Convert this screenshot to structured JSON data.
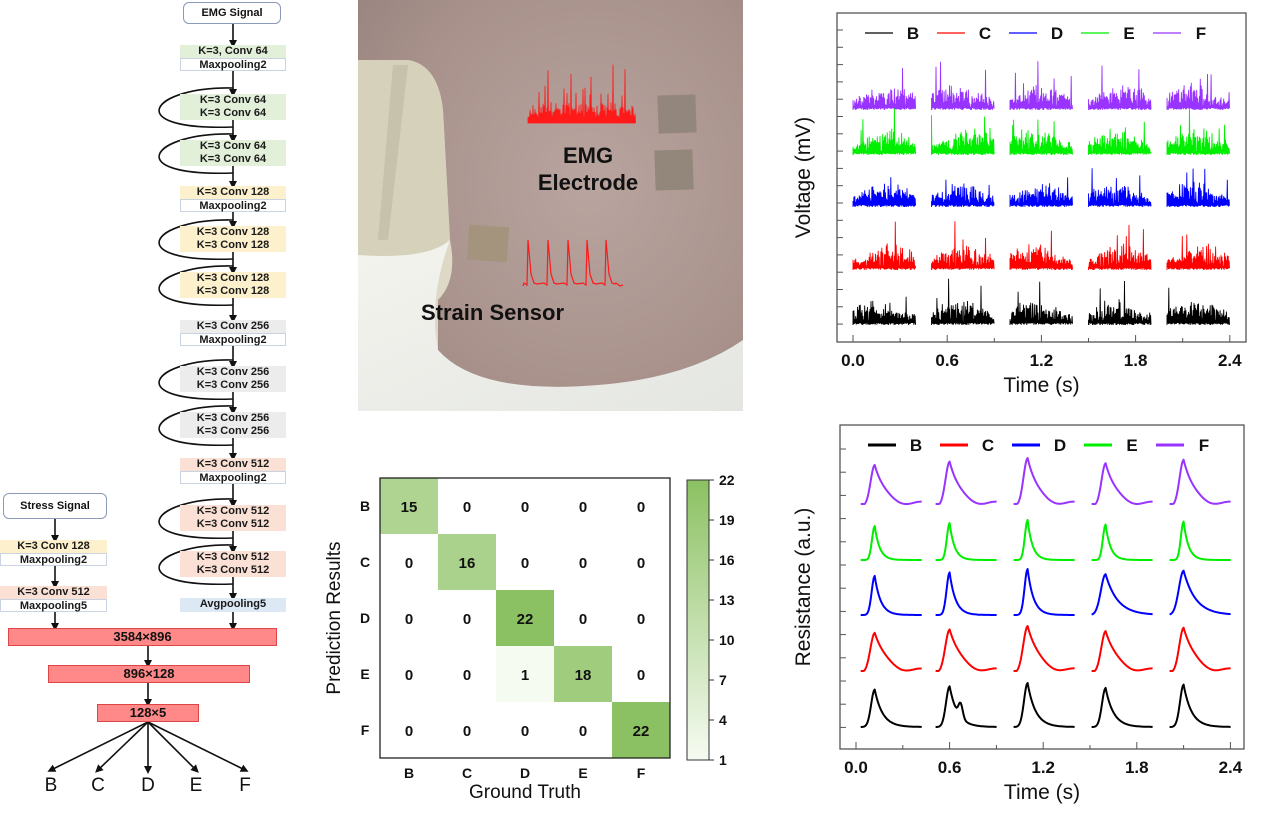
{
  "network": {
    "emg_input": "EMG Signal",
    "stress_input": "Stress Signal",
    "emg_branch": [
      {
        "type": "block",
        "stage": "64",
        "rows": [
          "K=3, Conv 64",
          "Maxpooling2"
        ]
      },
      {
        "type": "res",
        "stage": "64",
        "rows": [
          "K=3 Conv 64",
          "K=3 Conv 64"
        ]
      },
      {
        "type": "res",
        "stage": "64",
        "rows": [
          "K=3 Conv 64",
          "K=3 Conv 64"
        ]
      },
      {
        "type": "block",
        "stage": "128",
        "rows": [
          "K=3 Conv 128",
          "Maxpooling2"
        ]
      },
      {
        "type": "res",
        "stage": "128",
        "rows": [
          "K=3 Conv 128",
          "K=3 Conv 128"
        ]
      },
      {
        "type": "res",
        "stage": "128",
        "rows": [
          "K=3 Conv 128",
          "K=3 Conv 128"
        ]
      },
      {
        "type": "block",
        "stage": "256",
        "rows": [
          "K=3 Conv 256",
          "Maxpooling2"
        ]
      },
      {
        "type": "res",
        "stage": "256",
        "rows": [
          "K=3 Conv 256",
          "K=3 Conv 256"
        ]
      },
      {
        "type": "res",
        "stage": "256",
        "rows": [
          "K=3 Conv 256",
          "K=3 Conv 256"
        ]
      },
      {
        "type": "block",
        "stage": "512",
        "rows": [
          "K=3 Conv 512",
          "Maxpooling2"
        ]
      },
      {
        "type": "res",
        "stage": "512",
        "rows": [
          "K=3 Conv 512",
          "K=3 Conv 512"
        ]
      },
      {
        "type": "res",
        "stage": "512",
        "rows": [
          "K=3 Conv 512",
          "K=3 Conv 512"
        ]
      },
      {
        "type": "avg",
        "stage": "avg",
        "rows": [
          "Avgpooling5"
        ]
      }
    ],
    "stress_branch": [
      {
        "stage": "128",
        "rows": [
          "K=3 Conv 128",
          "Maxpooling2"
        ]
      },
      {
        "stage": "512",
        "rows": [
          "K=3 Conv 512",
          "Maxpooling5"
        ]
      }
    ],
    "fc_layers": [
      "3584×896",
      "896×128",
      "128×5"
    ],
    "outputs": [
      "B",
      "C",
      "D",
      "E",
      "F"
    ],
    "stage_colors": {
      "64": "#e2efd9",
      "128": "#fdf0cc",
      "256": "#ececec",
      "512": "#fbe1d5",
      "avg": "#dce8f4"
    }
  },
  "photo": {
    "emg_label_line1": "EMG",
    "emg_label_line2": "Electrode",
    "strain_label": "Strain Sensor",
    "signal_color": "#ff1a1a"
  },
  "chart_data": [
    {
      "type": "heatmap",
      "title": "",
      "xlabel": "Ground Truth",
      "ylabel": "Prediction Results",
      "x_categories": [
        "B",
        "C",
        "D",
        "E",
        "F"
      ],
      "y_categories": [
        "B",
        "C",
        "D",
        "E",
        "F"
      ],
      "matrix": [
        [
          15,
          0,
          0,
          0,
          0
        ],
        [
          0,
          16,
          0,
          0,
          0
        ],
        [
          0,
          0,
          22,
          0,
          0
        ],
        [
          0,
          0,
          1,
          18,
          0
        ],
        [
          0,
          0,
          0,
          0,
          22
        ]
      ],
      "colorbar": {
        "min": 1,
        "max": 22,
        "ticks": [
          22,
          19,
          16,
          13,
          10,
          7,
          4,
          1
        ],
        "low_color": "#f6fbf1",
        "high_color": "#8cc163"
      }
    },
    {
      "type": "line",
      "title": "",
      "xlabel": "Time (s)",
      "ylabel": "Voltage (mV)",
      "xlim": [
        -0.12,
        2.8
      ],
      "x_ticks": [
        "0.0",
        "0.6",
        "1.2",
        "1.8",
        "2.4"
      ],
      "legend": "top",
      "series": [
        {
          "name": "B",
          "color": "#000000",
          "segments": [
            [
              0.0,
              0.4
            ],
            [
              0.5,
              0.9
            ],
            [
              1.0,
              1.4
            ],
            [
              1.5,
              1.9
            ],
            [
              2.0,
              2.4
            ]
          ],
          "offset_rank": 0
        },
        {
          "name": "C",
          "color": "#ff0000",
          "segments": [
            [
              0.0,
              0.4
            ],
            [
              0.5,
              0.9
            ],
            [
              1.0,
              1.4
            ],
            [
              1.5,
              1.9
            ],
            [
              2.0,
              2.4
            ]
          ],
          "offset_rank": 1
        },
        {
          "name": "D",
          "color": "#0000ff",
          "segments": [
            [
              0.0,
              0.4
            ],
            [
              0.5,
              0.9
            ],
            [
              1.0,
              1.4
            ],
            [
              1.5,
              1.9
            ],
            [
              2.0,
              2.4
            ]
          ],
          "offset_rank": 2
        },
        {
          "name": "E",
          "color": "#00ee00",
          "segments": [
            [
              0.0,
              0.4
            ],
            [
              0.5,
              0.9
            ],
            [
              1.0,
              1.4
            ],
            [
              1.5,
              1.9
            ],
            [
              2.0,
              2.4
            ]
          ],
          "offset_rank": 3
        },
        {
          "name": "F",
          "color": "#9933ff",
          "segments": [
            [
              0.0,
              0.4
            ],
            [
              0.5,
              0.9
            ],
            [
              1.0,
              1.4
            ],
            [
              1.5,
              1.9
            ],
            [
              2.0,
              2.4
            ]
          ],
          "offset_rank": 4
        }
      ],
      "note": "EMG bursts; y tick labels not shown"
    },
    {
      "type": "line",
      "title": "",
      "xlabel": "Time (s)",
      "ylabel": "Resistance (a.u.)",
      "xlim": [
        -0.1,
        2.5
      ],
      "x_ticks": [
        "0.0",
        "0.6",
        "1.2",
        "1.8",
        "2.4"
      ],
      "legend": "top",
      "series": [
        {
          "name": "B",
          "color": "#000000",
          "peaks": [
            0.12,
            0.6,
            1.1,
            1.6,
            2.1
          ],
          "offset_rank": 0
        },
        {
          "name": "C",
          "color": "#ff0000",
          "peaks": [
            0.12,
            0.6,
            1.1,
            1.6,
            2.1
          ],
          "offset_rank": 1
        },
        {
          "name": "D",
          "color": "#0000ff",
          "peaks": [
            0.12,
            0.6,
            1.1,
            1.6,
            2.1
          ],
          "offset_rank": 2
        },
        {
          "name": "E",
          "color": "#00ee00",
          "peaks": [
            0.12,
            0.6,
            1.1,
            1.6,
            2.1
          ],
          "offset_rank": 3
        },
        {
          "name": "F",
          "color": "#9933ff",
          "peaks": [
            0.12,
            0.6,
            1.1,
            1.6,
            2.1
          ],
          "offset_rank": 4
        }
      ],
      "note": "strain sensor pulses; y tick labels not shown"
    }
  ]
}
